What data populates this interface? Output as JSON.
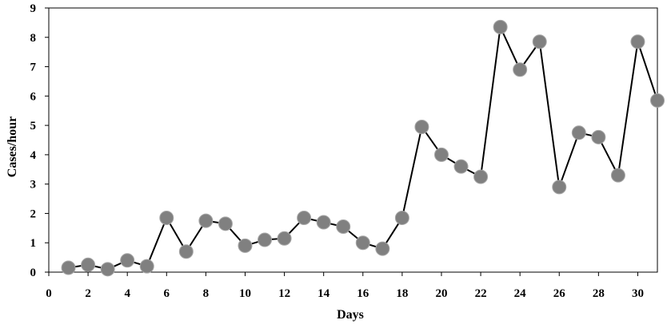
{
  "chart_data": {
    "type": "line",
    "title": "",
    "xlabel": "Days",
    "ylabel": "Cases/hour",
    "xlim": [
      0,
      31
    ],
    "ylim": [
      0,
      9
    ],
    "x_ticks": [
      0,
      2,
      4,
      6,
      8,
      10,
      12,
      14,
      16,
      18,
      20,
      22,
      24,
      26,
      28,
      30
    ],
    "y_ticks": [
      0,
      1,
      2,
      3,
      4,
      5,
      6,
      7,
      8,
      9
    ],
    "grid": false,
    "legend": "none",
    "series": [
      {
        "x": [
          1,
          2,
          3,
          4,
          5,
          6,
          7,
          8,
          9,
          10,
          11,
          12,
          13,
          14,
          15,
          16,
          17,
          18,
          19,
          20,
          21,
          22,
          23,
          24,
          25,
          26,
          27,
          28,
          29,
          30,
          31
        ],
        "y": [
          0.15,
          0.25,
          0.1,
          0.4,
          0.2,
          1.85,
          0.7,
          1.75,
          1.65,
          0.9,
          1.1,
          1.15,
          1.85,
          1.7,
          1.55,
          1.0,
          0.8,
          1.85,
          4.95,
          4.0,
          3.6,
          3.25,
          8.35,
          6.9,
          7.85,
          2.9,
          4.75,
          4.6,
          3.3,
          7.85,
          5.85
        ]
      }
    ],
    "colors": {
      "line": "#000000",
      "marker_fill": "#808080",
      "marker_stroke": "#a6a6a6"
    }
  }
}
